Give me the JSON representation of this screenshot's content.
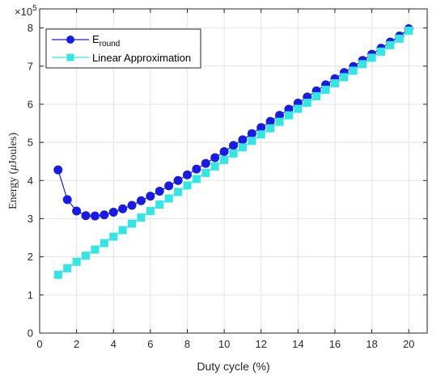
{
  "chart_data": {
    "type": "line",
    "xlabel": "Duty cycle (%)",
    "ylabel": "Energy (μJoules)",
    "ylabel_parts": {
      "main": "Energy (",
      "mu": "μ",
      "unit": "Joules)"
    },
    "y_multiplier": {
      "base": "×10",
      "exponent": "5"
    },
    "xlim": [
      0,
      21
    ],
    "ylim": [
      0,
      8.5
    ],
    "x_ticks": [
      0,
      2,
      4,
      6,
      8,
      10,
      12,
      14,
      16,
      18,
      20
    ],
    "y_ticks": [
      0,
      1,
      2,
      3,
      4,
      5,
      6,
      7,
      8
    ],
    "grid": true,
    "legend_position": "top-left",
    "x": [
      1,
      1.5,
      2,
      2.5,
      3,
      3.5,
      4,
      4.5,
      5,
      5.5,
      6,
      6.5,
      7,
      7.5,
      8,
      8.5,
      9,
      9.5,
      10,
      10.5,
      11,
      11.5,
      12,
      12.5,
      13,
      13.5,
      14,
      14.5,
      15,
      15.5,
      16,
      16.5,
      17,
      17.5,
      18,
      18.5,
      19,
      19.5,
      20
    ],
    "series": [
      {
        "name": "E",
        "name_sub": "round",
        "color": "#1a1ae6",
        "marker": "circle",
        "values": [
          4.28,
          3.5,
          3.2,
          3.08,
          3.07,
          3.1,
          3.17,
          3.26,
          3.35,
          3.47,
          3.59,
          3.72,
          3.86,
          4.0,
          4.15,
          4.3,
          4.45,
          4.6,
          4.76,
          4.92,
          5.07,
          5.23,
          5.39,
          5.55,
          5.71,
          5.87,
          6.03,
          6.19,
          6.35,
          6.51,
          6.67,
          6.83,
          6.99,
          7.15,
          7.31,
          7.47,
          7.63,
          7.79,
          7.98
        ]
      },
      {
        "name": "Linear Approximation",
        "color": "#33e6e6",
        "marker": "square",
        "values": [
          1.53,
          1.7,
          1.87,
          2.03,
          2.19,
          2.36,
          2.53,
          2.7,
          2.87,
          3.03,
          3.2,
          3.37,
          3.53,
          3.7,
          3.87,
          4.04,
          4.2,
          4.37,
          4.54,
          4.71,
          4.87,
          5.04,
          5.21,
          5.37,
          5.54,
          5.71,
          5.88,
          6.04,
          6.21,
          6.38,
          6.55,
          6.71,
          6.88,
          7.05,
          7.22,
          7.38,
          7.55,
          7.72,
          7.93
        ]
      }
    ]
  }
}
